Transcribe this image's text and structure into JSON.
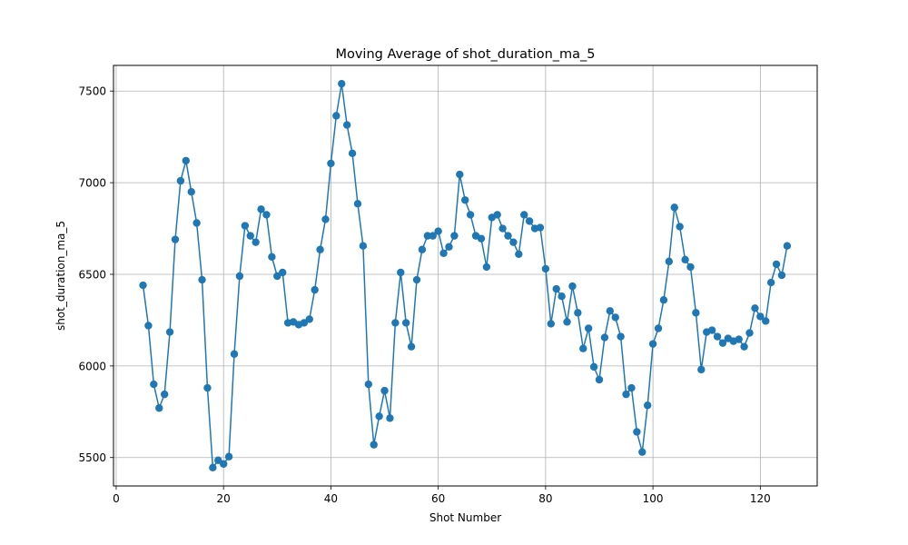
{
  "chart_data": {
    "type": "line",
    "title": "Moving Average of shot_duration_ma_5",
    "xlabel": "Shot Number",
    "ylabel": "shot_duration_ma_5",
    "xlim": [
      -0.5,
      130.6
    ],
    "ylim": [
      5345,
      7640
    ],
    "xticks": [
      0,
      20,
      40,
      60,
      80,
      100,
      120
    ],
    "yticks": [
      5500,
      6000,
      6500,
      7000,
      7500
    ],
    "grid": true,
    "marker": "circle",
    "color": "#1f77b4",
    "series": [
      {
        "x": [
          5,
          6,
          7,
          8,
          9,
          10,
          11,
          12,
          13,
          14,
          15,
          16,
          17,
          18,
          19,
          20,
          21,
          22,
          23,
          24,
          25,
          26,
          27,
          28,
          29,
          30,
          31,
          32,
          33,
          34,
          35,
          36,
          37,
          38,
          39,
          40,
          41,
          42,
          43,
          44,
          45,
          46,
          47,
          48,
          49,
          50,
          51,
          52,
          53,
          54,
          55,
          56,
          57,
          58,
          59,
          60,
          61,
          62,
          63,
          64,
          65,
          66,
          67,
          68,
          69,
          70,
          71,
          72,
          73,
          74,
          75,
          76,
          77,
          78,
          79,
          80,
          81,
          82,
          83,
          84,
          85,
          86,
          87,
          88,
          89,
          90,
          91,
          92,
          93,
          94,
          95,
          96,
          97,
          98,
          99,
          100,
          101,
          102,
          103,
          104,
          105,
          106,
          107,
          108,
          109,
          110,
          111,
          112,
          113,
          114,
          115,
          116,
          117,
          118,
          119,
          120,
          121,
          122,
          123,
          124,
          125
        ],
        "y": [
          6440,
          6220,
          5900,
          5770,
          5845,
          6185,
          6690,
          7010,
          7120,
          6950,
          6780,
          6470,
          5880,
          5445,
          5485,
          5465,
          5505,
          6065,
          6490,
          6765,
          6710,
          6675,
          6855,
          6825,
          6595,
          6490,
          6510,
          6235,
          6240,
          6225,
          6235,
          6255,
          6415,
          6635,
          6800,
          7105,
          7365,
          7540,
          7315,
          7160,
          6885,
          6655,
          5900,
          5570,
          5725,
          5865,
          5715,
          6235,
          6510,
          6235,
          6105,
          6470,
          6635,
          6710,
          6710,
          6735,
          6615,
          6650,
          6710,
          7045,
          6905,
          6825,
          6710,
          6695,
          6540,
          6810,
          6825,
          6750,
          6710,
          6675,
          6610,
          6825,
          6790,
          6750,
          6755,
          6530,
          6230,
          6420,
          6380,
          6240,
          6435,
          6290,
          6095,
          6205,
          5995,
          5925,
          6155,
          6300,
          6265,
          6160,
          5845,
          5880,
          5640,
          5530,
          5785,
          6120,
          6205,
          6360,
          6570,
          6865,
          6760,
          6580,
          6540,
          6290,
          5980,
          6185,
          6195,
          6160,
          6125,
          6150,
          6135,
          6145,
          6105,
          6180,
          6315,
          6270,
          6245,
          6455,
          6555,
          6495,
          6655
        ]
      }
    ]
  }
}
